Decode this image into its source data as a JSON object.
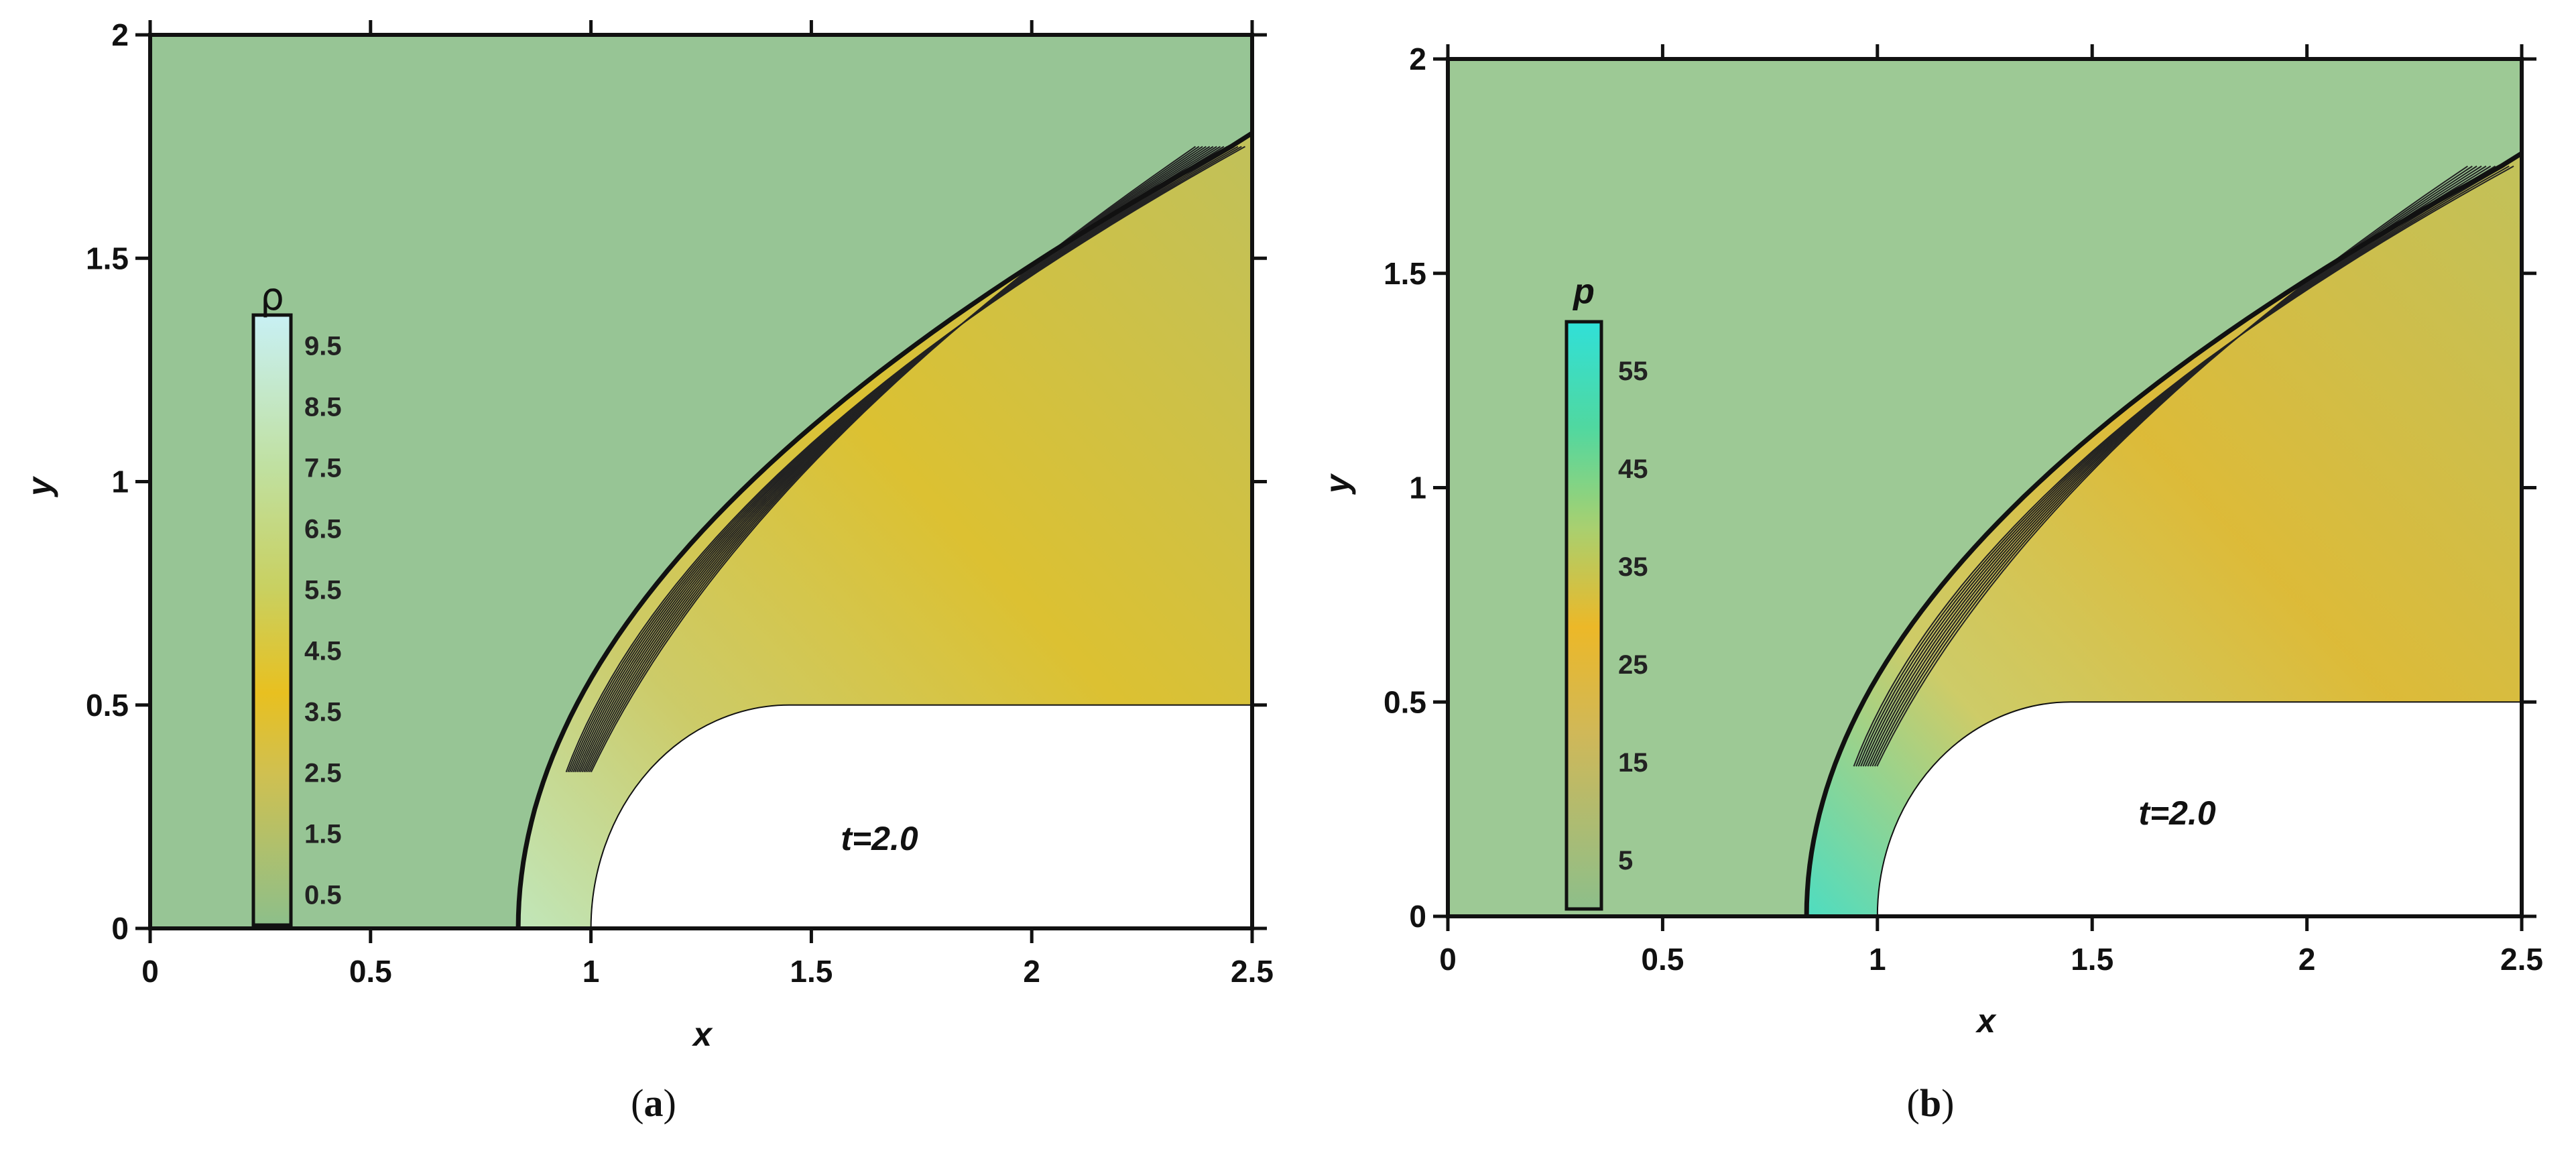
{
  "chart_data": [
    {
      "type": "heatmap",
      "panel_label": "a",
      "xlabel": "x",
      "ylabel": "y",
      "xlim": [
        0,
        2.5
      ],
      "ylim": [
        0,
        2
      ],
      "xticks": [
        "0",
        "0.5",
        "1",
        "1.5",
        "2",
        "2.5"
      ],
      "yticks": [
        "0",
        "0.5",
        "1",
        "1.5",
        "2"
      ],
      "annotation": "t=2.0",
      "colorbar": {
        "title": "ρ",
        "range": [
          0,
          10
        ],
        "ticks": [
          "9.5",
          "8.5",
          "7.5",
          "6.5",
          "5.5",
          "4.5",
          "3.5",
          "2.5",
          "1.5",
          "0.5"
        ]
      },
      "shock_contour_count": 15,
      "colors": {
        "background": "#97c595",
        "peak": "#e8c020",
        "stagnation": "#c8ecc0"
      }
    },
    {
      "type": "heatmap",
      "panel_label": "b",
      "xlabel": "x",
      "ylabel": "y",
      "xlim": [
        0,
        2.5
      ],
      "ylim": [
        0,
        2
      ],
      "xticks": [
        "0",
        "0.5",
        "1",
        "1.5",
        "2",
        "2.5"
      ],
      "yticks": [
        "0",
        "0.5",
        "1",
        "1.5",
        "2"
      ],
      "annotation": "t=2.0",
      "colorbar": {
        "title": "p",
        "range": [
          0,
          60
        ],
        "ticks": [
          "55",
          "45",
          "35",
          "25",
          "15",
          "5"
        ]
      },
      "shock_contour_count": 11,
      "colors": {
        "background": "#9dc995",
        "peak": "#e8b828",
        "stagnation": "#40e0c8"
      }
    }
  ]
}
